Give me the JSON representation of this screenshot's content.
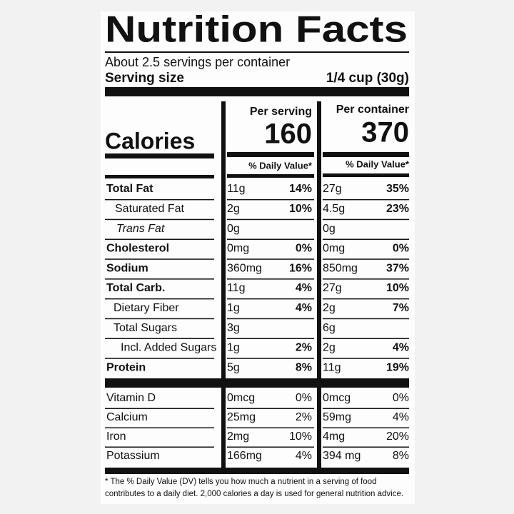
{
  "header": {
    "title": "Nutrition Facts",
    "servings": "About 2.5 servings per container",
    "serving_size_label": "Serving size",
    "serving_size_value": "1/4 cup (30g)"
  },
  "calories": {
    "label": "Calories",
    "per_serving_label": "Per serving",
    "per_serving_value": "160",
    "per_container_label": "Per container",
    "per_container_value": "370",
    "daily_value_label": "% Daily Value*"
  },
  "table": {
    "rows": [
      [
        "Total Fat",
        "11g",
        "14%",
        "27g",
        "35%"
      ],
      [
        "Saturated Fat",
        "2g",
        "10%",
        "4.5g",
        "23%"
      ],
      [
        "Trans Fat",
        "0g",
        null,
        "0g",
        null
      ],
      [
        "Cholesterol",
        "0mg",
        "0%",
        "0mg",
        "0%"
      ],
      [
        "Sodium",
        "360mg",
        "16%",
        "850mg",
        "37%"
      ],
      [
        "Total Carb.",
        "11g",
        "4%",
        "27g",
        "10%"
      ],
      [
        "Dietary Fiber",
        "1g",
        "4%",
        "2g",
        "7%"
      ],
      [
        "Total Sugars",
        "3g",
        null,
        "6g",
        null
      ],
      [
        "Incl. Added Sugars",
        "1g",
        "2%",
        "2g",
        "4%"
      ],
      [
        "Protein",
        "5g",
        "8%",
        "11g",
        "19%"
      ]
    ],
    "vitamins": [
      [
        "Vitamin D",
        "0mcg",
        "0%",
        "0mcg",
        "0%"
      ],
      [
        "Calcium",
        "25mg",
        "2%",
        "59mg",
        "4%"
      ],
      [
        "Iron",
        "2mg",
        "10%",
        "4mg",
        "20%"
      ],
      [
        "Potassium",
        "166mg",
        "4%",
        "394 mg",
        "8%"
      ]
    ]
  },
  "footnote": [
    "* The % Daily Value (DV) tells you how much a nutrient in a serving of food",
    "contributes to a daily diet. 2,000 calories a day is used for general nutrition advice."
  ]
}
